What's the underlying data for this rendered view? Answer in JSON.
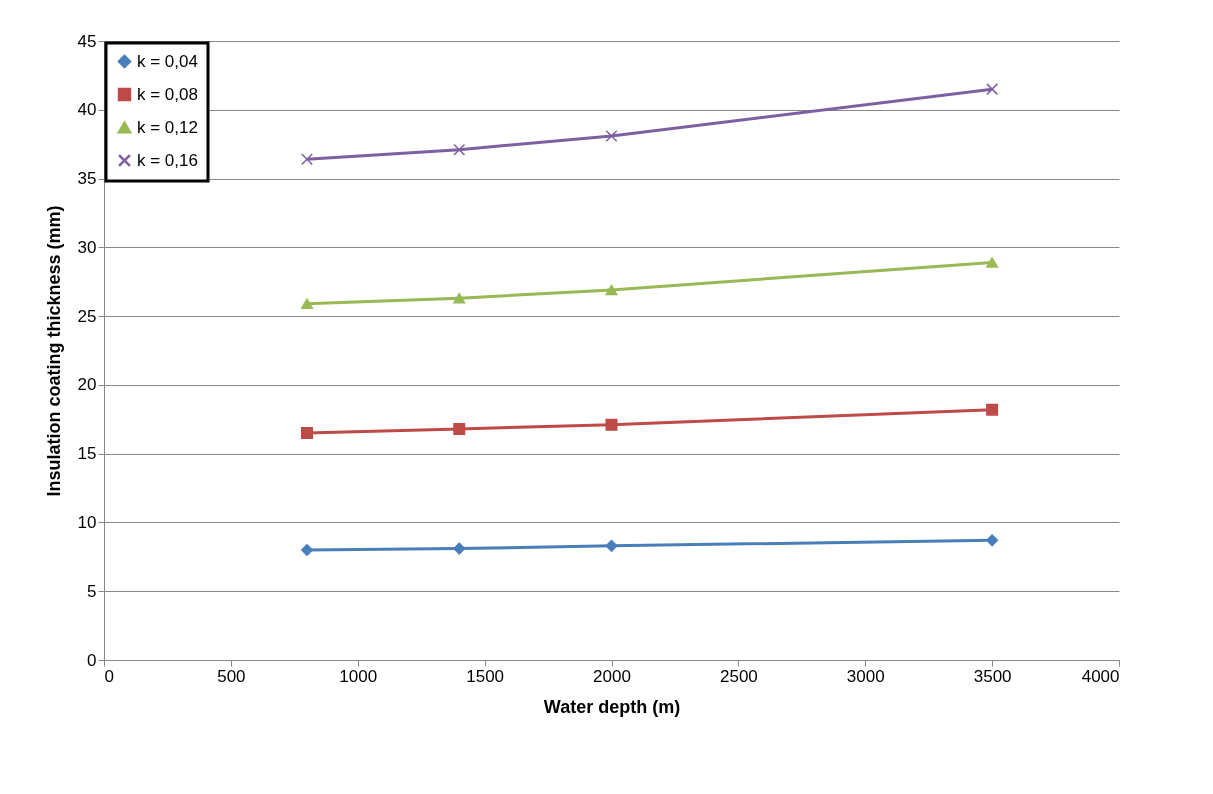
{
  "chart_data": {
    "type": "line",
    "xlabel": "Water depth (m)",
    "ylabel": "Insulation coating thickness (mm)",
    "x": [
      800,
      1400,
      2000,
      3500
    ],
    "series": [
      {
        "name": "k = 0,04",
        "color": "#4a7ebb",
        "marker": "diamond",
        "values": [
          8.0,
          8.1,
          8.3,
          8.7
        ]
      },
      {
        "name": "k = 0,08",
        "color": "#be4b48",
        "marker": "square",
        "values": [
          16.5,
          16.8,
          17.1,
          18.2
        ]
      },
      {
        "name": "k = 0,12",
        "color": "#98b954",
        "marker": "triangle",
        "values": [
          25.9,
          26.3,
          26.9,
          28.9
        ]
      },
      {
        "name": "k = 0,16",
        "color": "#7d60a0",
        "marker": "cross",
        "values": [
          36.4,
          37.1,
          38.1,
          41.5
        ]
      }
    ],
    "xlim": [
      0,
      4000
    ],
    "xticks": [
      0,
      500,
      1000,
      1500,
      2000,
      2500,
      3000,
      3500,
      4000
    ],
    "ylim": [
      0,
      45
    ],
    "yticks": [
      0,
      5,
      10,
      15,
      20,
      25,
      30,
      35,
      40,
      45
    ],
    "grid": "y",
    "legend": "top left",
    "line_style": "solid"
  }
}
